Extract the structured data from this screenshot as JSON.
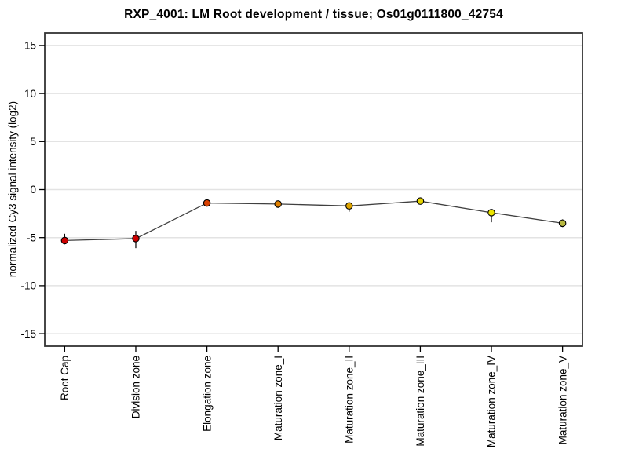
{
  "chart_data": {
    "type": "line",
    "title": "RXP_4001: LM Root development / tissue; Os01g0111800_42754",
    "xlabel": "",
    "ylabel": "normalized Cy3 signal intensity (log2)",
    "categories": [
      "Root Cap",
      "Division zone",
      "Elongation zone",
      "Maturation zone_I",
      "Maturation zone_II",
      "Maturation zone_III",
      "Maturation zone_IV",
      "Maturation zone_V"
    ],
    "series": [
      {
        "name": "normalized Cy3 signal intensity (log2)",
        "values": [
          -5.3,
          -5.1,
          -1.4,
          -1.5,
          -1.7,
          -1.2,
          -2.4,
          -3.5
        ],
        "error_low": [
          -5.7,
          -6.1,
          -1.6,
          -1.9,
          -2.3,
          -1.4,
          -3.4,
          -3.9
        ],
        "error_high": [
          -4.6,
          -4.3,
          -1.2,
          -1.2,
          -1.5,
          -1.0,
          -2.2,
          -3.1
        ],
        "point_colors": [
          "#cc0000",
          "#cc0000",
          "#d84000",
          "#e08000",
          "#dda400",
          "#e6d400",
          "#ece400",
          "#b8b840"
        ]
      }
    ],
    "yticks": [
      15,
      10,
      5,
      0,
      -5,
      -10,
      -15
    ],
    "ylim": [
      -16.3,
      16.3
    ],
    "grid": true,
    "legend": "none",
    "line_color": "#404040",
    "gridline_color": "#e3e3e3",
    "axis_color": "#333333",
    "background": "#ffffff"
  }
}
